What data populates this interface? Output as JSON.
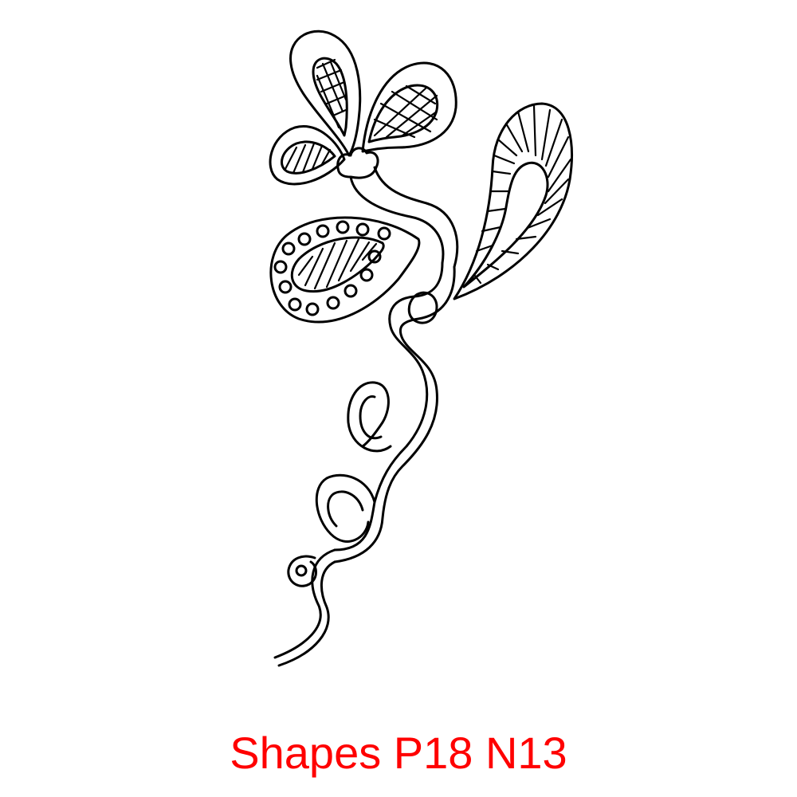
{
  "caption": {
    "text": "Shapes P18 N13",
    "color": "#ff0000"
  },
  "artwork": {
    "description_icon": "doodle-flower-icon",
    "stroke_color": "#000000",
    "background_color": "#ffffff"
  }
}
